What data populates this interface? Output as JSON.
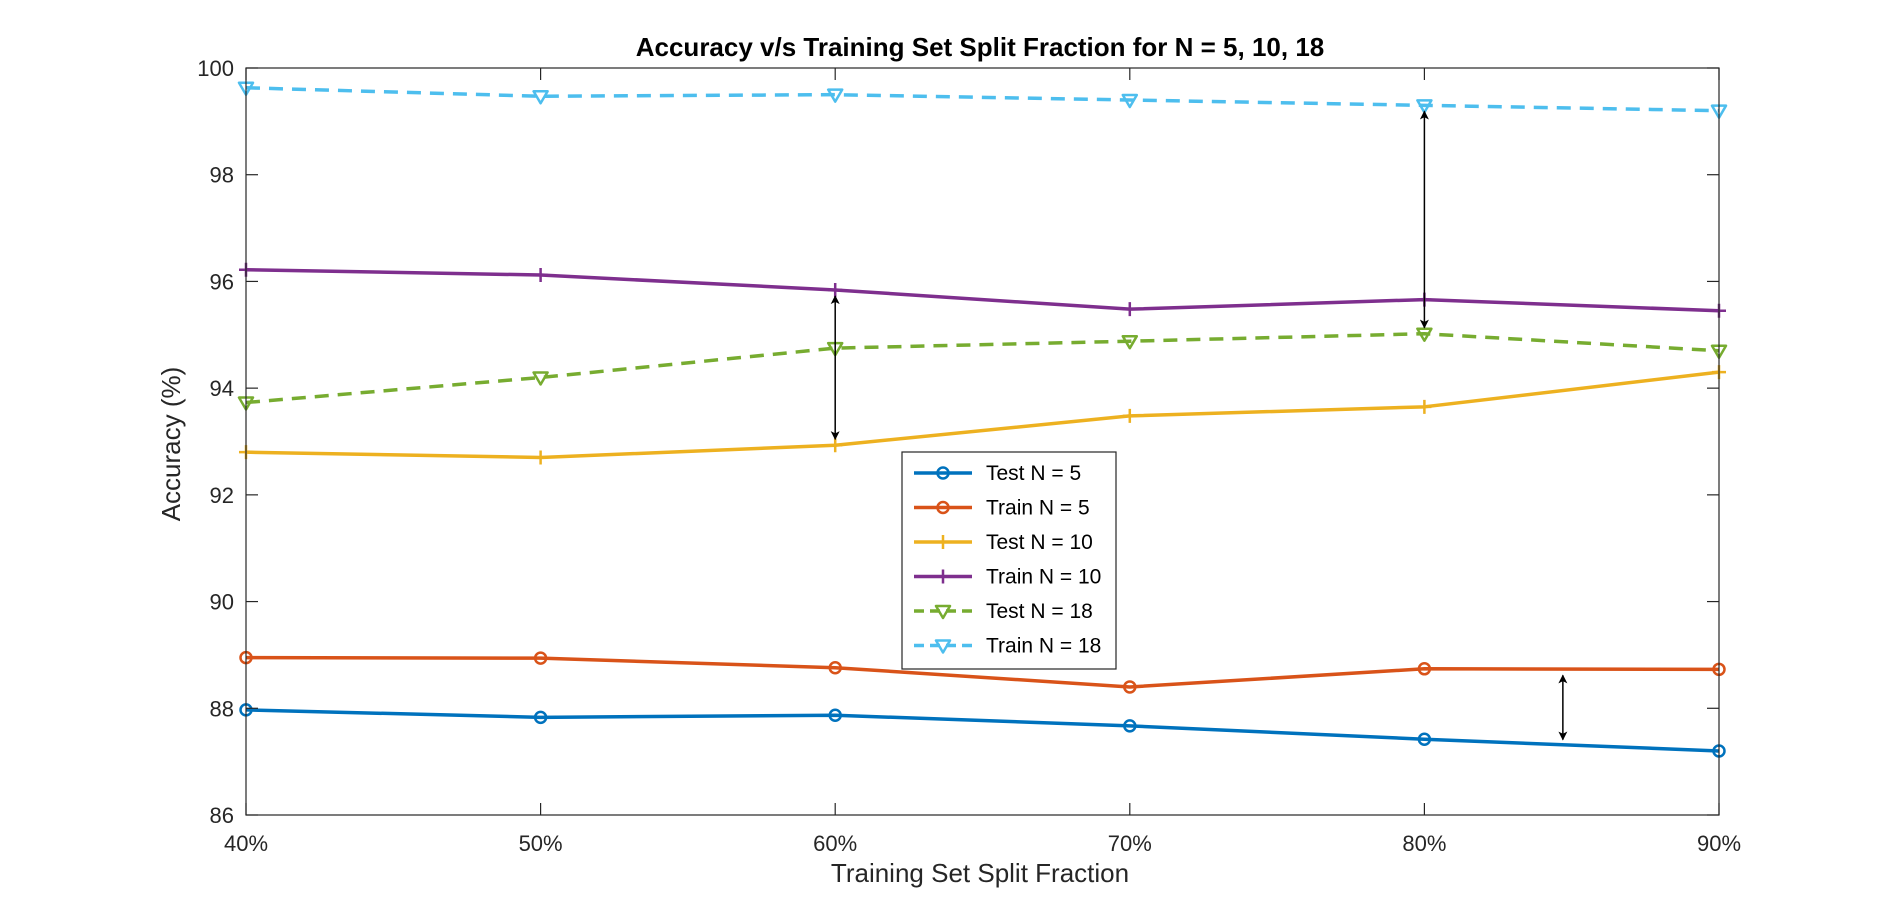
{
  "chart_data": {
    "type": "line",
    "title": "Accuracy v/s Training Set Split Fraction for N = 5, 10, 18",
    "xlabel": "Training Set Split Fraction",
    "ylabel": "Accuracy (%)",
    "categories": [
      "40%",
      "50%",
      "60%",
      "70%",
      "80%",
      "90%"
    ],
    "ylim": [
      86,
      100
    ],
    "yticks": [
      86,
      88,
      90,
      92,
      94,
      96,
      98,
      100
    ],
    "grid": false,
    "legend_position": "center",
    "series": [
      {
        "name": "Test N = 5",
        "values": [
          87.97,
          87.83,
          87.87,
          87.67,
          87.42,
          87.2
        ],
        "color": "#0072BD",
        "marker": "circle",
        "dash": "solid"
      },
      {
        "name": "Train N = 5",
        "values": [
          88.95,
          88.94,
          88.76,
          88.4,
          88.74,
          88.73
        ],
        "color": "#D95319",
        "marker": "circle",
        "dash": "solid"
      },
      {
        "name": "Test N = 10",
        "values": [
          92.8,
          92.7,
          92.93,
          93.48,
          93.65,
          94.3
        ],
        "color": "#EDB120",
        "marker": "plus",
        "dash": "solid"
      },
      {
        "name": "Train N = 10",
        "values": [
          96.22,
          96.12,
          95.84,
          95.48,
          95.66,
          95.45
        ],
        "color": "#7E2F8E",
        "marker": "plus",
        "dash": "solid"
      },
      {
        "name": "Test N = 18",
        "values": [
          93.73,
          94.2,
          94.75,
          94.88,
          95.02,
          94.7
        ],
        "color": "#77AC30",
        "marker": "triangle-down",
        "dash": "dashed"
      },
      {
        "name": "Train N = 18",
        "values": [
          99.63,
          99.47,
          99.5,
          99.4,
          99.3,
          99.2
        ],
        "color": "#4DBEEE",
        "marker": "triangle-down",
        "dash": "dashed"
      }
    ],
    "annotations": [
      {
        "type": "double-arrow",
        "x": 2,
        "y1": 95.84,
        "y2": 92.93
      },
      {
        "type": "double-arrow",
        "x": 4,
        "y1": 99.3,
        "y2": 95.02
      },
      {
        "type": "double-arrow",
        "x": 4.47,
        "y1": 88.73,
        "y2": 87.3
      }
    ]
  }
}
